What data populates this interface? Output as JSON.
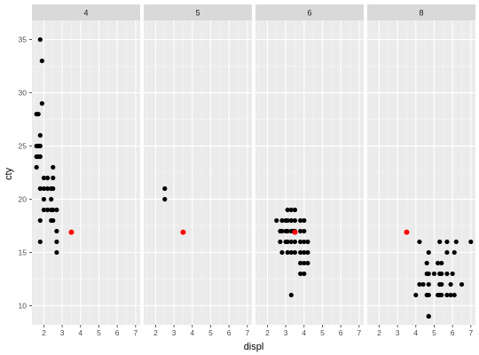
{
  "chart_data": {
    "type": "scatter",
    "facet_variable": "cyl",
    "facet_layout": "one-row",
    "xlabel": "displ",
    "ylabel": "cty",
    "xlim": [
      1.35,
      7.25
    ],
    "ylim": [
      8.2,
      36.8
    ],
    "x_ticks": [
      2,
      3,
      4,
      5,
      6,
      7
    ],
    "y_ticks": [
      10,
      15,
      20,
      25,
      30,
      35
    ],
    "grid": true,
    "colors": {
      "panel_background": "#ebebeb",
      "strip_background": "#d9d9d9",
      "points": "#000000",
      "highlight": "#ff0000"
    },
    "highlight_point": {
      "x": 3.5,
      "y": 16.9
    },
    "panels": [
      {
        "label": "4",
        "points": [
          [
            1.8,
            35
          ],
          [
            1.9,
            33
          ],
          [
            1.9,
            29
          ],
          [
            1.6,
            28
          ],
          [
            1.7,
            28
          ],
          [
            1.8,
            26
          ],
          [
            1.8,
            25
          ],
          [
            1.6,
            25
          ],
          [
            1.7,
            25
          ],
          [
            1.6,
            24
          ],
          [
            1.7,
            24
          ],
          [
            1.8,
            24
          ],
          [
            1.6,
            23
          ],
          [
            2.5,
            23
          ],
          [
            2.0,
            22
          ],
          [
            2.2,
            22
          ],
          [
            2.5,
            22
          ],
          [
            1.8,
            21
          ],
          [
            2.0,
            21
          ],
          [
            2.2,
            21
          ],
          [
            2.4,
            21
          ],
          [
            2.5,
            21
          ],
          [
            2.0,
            20
          ],
          [
            2.4,
            20
          ],
          [
            2.0,
            19
          ],
          [
            2.2,
            19
          ],
          [
            2.4,
            19
          ],
          [
            2.5,
            19
          ],
          [
            2.7,
            19
          ],
          [
            1.8,
            18
          ],
          [
            2.4,
            18
          ],
          [
            2.5,
            18
          ],
          [
            2.7,
            17
          ],
          [
            1.8,
            16
          ],
          [
            2.7,
            16
          ],
          [
            2.7,
            15
          ]
        ]
      },
      {
        "label": "5",
        "points": [
          [
            2.5,
            21
          ],
          [
            2.5,
            20
          ]
        ]
      },
      {
        "label": "6",
        "points": [
          [
            3.1,
            19
          ],
          [
            3.3,
            19
          ],
          [
            3.5,
            19
          ],
          [
            2.5,
            18
          ],
          [
            2.8,
            18
          ],
          [
            3.0,
            18
          ],
          [
            3.1,
            18
          ],
          [
            3.3,
            18
          ],
          [
            3.5,
            18
          ],
          [
            3.8,
            18
          ],
          [
            4.0,
            18
          ],
          [
            2.7,
            17
          ],
          [
            2.8,
            17
          ],
          [
            3.0,
            17
          ],
          [
            3.1,
            17
          ],
          [
            3.3,
            17
          ],
          [
            3.4,
            17
          ],
          [
            3.5,
            17
          ],
          [
            3.8,
            17
          ],
          [
            4.0,
            17
          ],
          [
            2.7,
            16
          ],
          [
            3.0,
            16
          ],
          [
            3.1,
            16
          ],
          [
            3.3,
            16
          ],
          [
            3.5,
            16
          ],
          [
            3.8,
            16
          ],
          [
            4.0,
            16
          ],
          [
            4.2,
            16
          ],
          [
            2.8,
            15
          ],
          [
            3.1,
            15
          ],
          [
            3.3,
            15
          ],
          [
            3.5,
            15
          ],
          [
            3.8,
            15
          ],
          [
            4.0,
            15
          ],
          [
            4.2,
            15
          ],
          [
            3.8,
            14
          ],
          [
            4.0,
            14
          ],
          [
            4.2,
            14
          ],
          [
            3.8,
            13
          ],
          [
            4.0,
            13
          ],
          [
            3.3,
            11
          ]
        ]
      },
      {
        "label": "8",
        "points": [
          [
            4.2,
            16
          ],
          [
            5.3,
            16
          ],
          [
            5.7,
            16
          ],
          [
            6.2,
            16
          ],
          [
            7.0,
            16
          ],
          [
            4.7,
            15
          ],
          [
            5.7,
            15
          ],
          [
            6.1,
            15
          ],
          [
            4.6,
            14
          ],
          [
            5.2,
            14
          ],
          [
            5.4,
            14
          ],
          [
            4.7,
            13
          ],
          [
            4.6,
            13
          ],
          [
            5.0,
            13
          ],
          [
            5.3,
            13
          ],
          [
            5.4,
            13
          ],
          [
            5.7,
            13
          ],
          [
            6.0,
            13
          ],
          [
            4.2,
            12
          ],
          [
            4.4,
            12
          ],
          [
            4.7,
            12
          ],
          [
            5.3,
            12
          ],
          [
            5.4,
            12
          ],
          [
            5.9,
            12
          ],
          [
            6.5,
            12
          ],
          [
            4.0,
            11
          ],
          [
            4.6,
            11
          ],
          [
            4.7,
            11
          ],
          [
            5.2,
            11
          ],
          [
            5.3,
            11
          ],
          [
            5.4,
            11
          ],
          [
            5.7,
            11
          ],
          [
            5.9,
            11
          ],
          [
            6.1,
            11
          ],
          [
            4.7,
            9
          ],
          [
            4.7,
            9
          ]
        ]
      }
    ]
  }
}
